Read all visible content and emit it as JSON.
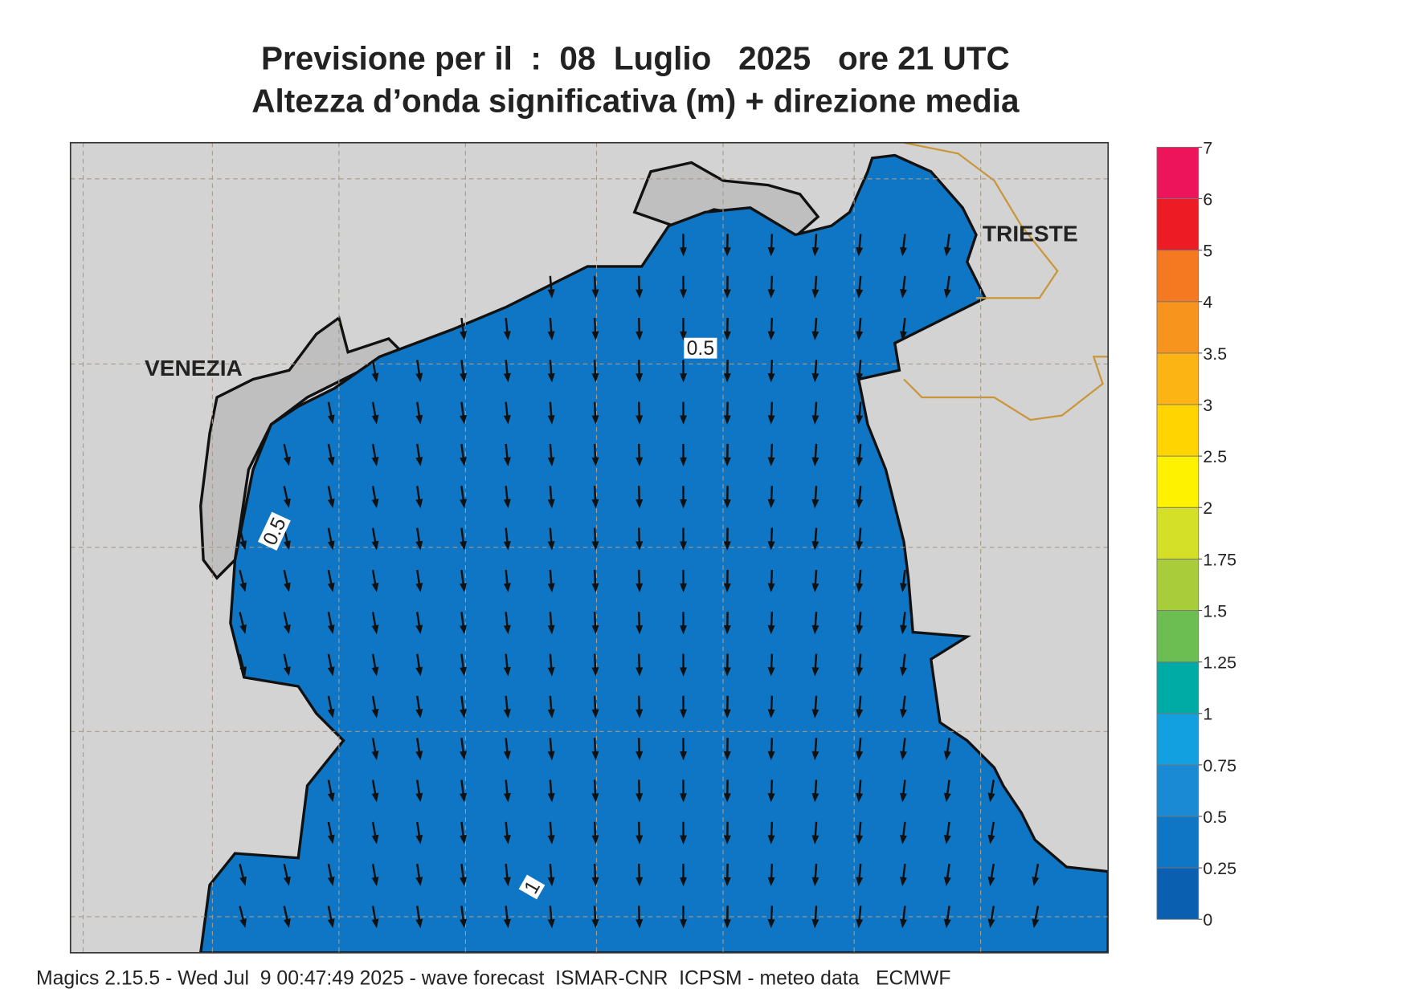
{
  "header": {
    "title": "Previsione per il  :  08  Luglio   2025   ore 21 UTC",
    "subtitle": "Altezza d’onda significativa (m) + direzione media"
  },
  "places": [
    "VENEZIA",
    "TRIESTE"
  ],
  "contour_labels": [
    0.5,
    0.5,
    1
  ],
  "colorbar": {
    "levels": [
      0,
      0.25,
      0.5,
      0.75,
      1,
      1.25,
      1.5,
      1.75,
      2,
      2.5,
      3,
      3.5,
      4,
      5,
      6,
      7
    ],
    "colors": [
      "#0a5fb0",
      "#0e76c4",
      "#1a8ad4",
      "#13a0e0",
      "#00aaa5",
      "#6cbd52",
      "#a8cc3a",
      "#d4df28",
      "#fff200",
      "#ffd400",
      "#fbb414",
      "#f7941d",
      "#f47920",
      "#ed1c24",
      "#ed145b"
    ]
  },
  "footer": "Magics 2.15.5 - Wed Jul  9 00:47:49 2025 - wave forecast  ISMAR-CNR  ICPSM - meteo data   ECMWF"
}
